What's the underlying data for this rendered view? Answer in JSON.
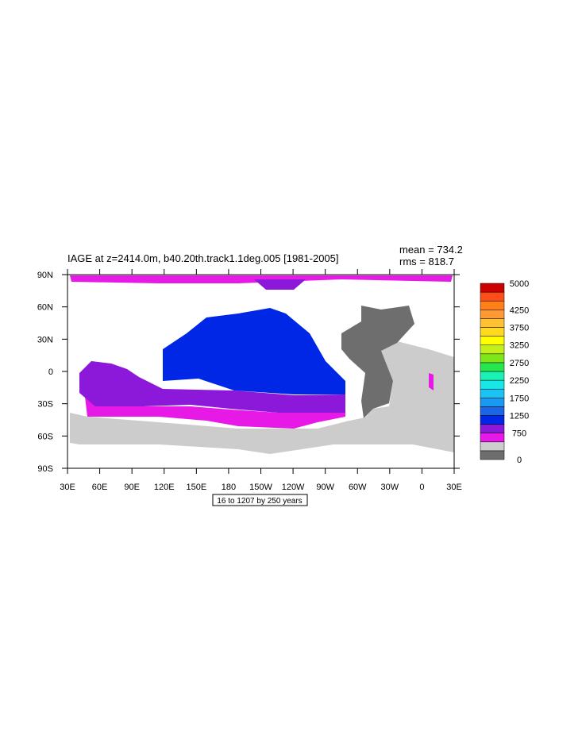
{
  "title": "IAGE at z=2414.0m, b40.20th.track1.1deg.005 [1981-2005]",
  "stats": {
    "mean": "mean = 734.2",
    "rms": "rms = 818.7"
  },
  "map": {
    "lat_labels": [
      "90N",
      "60N",
      "30N",
      "0",
      "30S",
      "60S",
      "90S"
    ],
    "lon_labels": [
      "30E",
      "60E",
      "90E",
      "120E",
      "150E",
      "180",
      "150W",
      "120W",
      "90W",
      "60W",
      "30W",
      "0",
      "30E"
    ]
  },
  "colorbar": {
    "max": 5000,
    "colors": [
      "#6e6e6e",
      "#cccccc",
      "#e619e6",
      "#8c19d9",
      "#0026e6",
      "#1a66e6",
      "#1a99f0",
      "#19c4f5",
      "#19e6e6",
      "#19f2b3",
      "#26e64d",
      "#7fe619",
      "#c4f019",
      "#ffff00",
      "#ffd91a",
      "#ffc133",
      "#ff9933",
      "#ff7f19",
      "#ff4d19",
      "#cc0000"
    ],
    "labels": [
      5000,
      4250,
      3750,
      3250,
      2750,
      2250,
      1750,
      1250,
      750,
      0
    ]
  },
  "footnote": "16 to 1207 by 250 years"
}
